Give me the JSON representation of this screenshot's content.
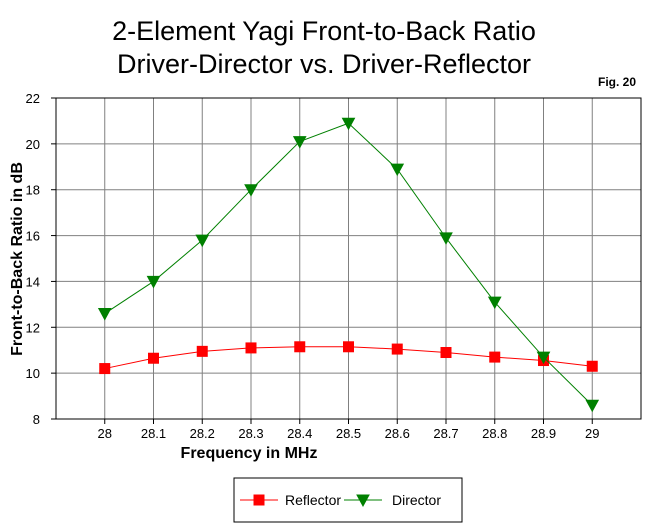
{
  "chart_data": {
    "type": "line",
    "title_line1": "2-Element Yagi Front-to-Back Ratio",
    "title_line2": "Driver-Director vs. Driver-Reflector",
    "figure_label": "Fig. 20",
    "xlabel": "Frequency in MHz",
    "ylabel": "Front-to-Back Ratio in dB",
    "x": [
      28,
      28.1,
      28.2,
      28.3,
      28.4,
      28.5,
      28.6,
      28.7,
      28.8,
      28.9,
      29
    ],
    "x_tick_labels": [
      "28",
      "28.1",
      "28.2",
      "28.3",
      "28.4",
      "28.5",
      "28.6",
      "28.7",
      "28.8",
      "28.9",
      "29"
    ],
    "y_ticks": [
      8,
      10,
      12,
      14,
      16,
      18,
      20,
      22
    ],
    "xlim": [
      27.9,
      29.1
    ],
    "ylim": [
      8,
      22
    ],
    "grid": true,
    "legend_position": "bottom-center",
    "series": [
      {
        "name": "Reflector",
        "color": "#ff0000",
        "marker": "square",
        "values": [
          10.2,
          10.65,
          10.95,
          11.1,
          11.15,
          11.15,
          11.05,
          10.9,
          10.7,
          10.55,
          10.3
        ]
      },
      {
        "name": "Director",
        "color": "#008000",
        "marker_color": "#008000",
        "marker": "triangle-down",
        "values": [
          12.6,
          14.0,
          15.8,
          18.0,
          20.1,
          20.9,
          18.9,
          15.9,
          13.1,
          10.7,
          8.6
        ]
      }
    ]
  }
}
